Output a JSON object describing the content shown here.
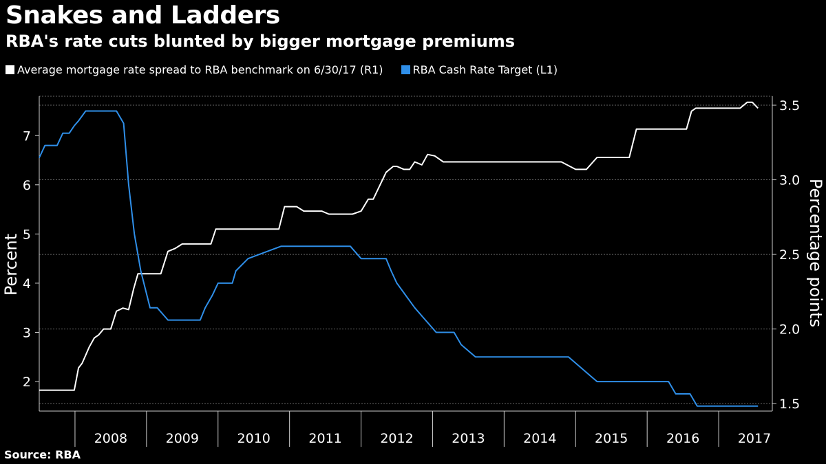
{
  "title": "Snakes and Ladders",
  "subtitle": "RBA's rate cuts blunted by bigger mortgage premiums",
  "source": "Source: RBA",
  "chart_data": {
    "type": "line",
    "xlim": [
      2007.5,
      2017.75
    ],
    "left_axis": {
      "label": "Percent",
      "ticks": [
        2,
        3,
        4,
        5,
        6,
        7
      ],
      "ylim": [
        1.4,
        7.8
      ]
    },
    "right_axis": {
      "label": "Percentage points",
      "ticks": [
        1.5,
        2.0,
        2.5,
        3.0,
        3.5
      ],
      "tick_labels": [
        "1.5",
        "2.0",
        "2.5",
        "3.0",
        "3.5"
      ],
      "ylim": [
        1.45,
        3.56
      ]
    },
    "x_tick_labels": [
      "2008",
      "2009",
      "2010",
      "2011",
      "2012",
      "2013",
      "2014",
      "2015",
      "2016",
      "2017"
    ],
    "grid": "horizontal dotted",
    "series": [
      {
        "name": "Average mortgage rate spread to RBA benchmark on 6/30/17 (R1)",
        "axis": "right",
        "color": "#ffffff",
        "x": [
          2007.5,
          2007.92,
          2007.99,
          2008.05,
          2008.1,
          2008.2,
          2008.27,
          2008.33,
          2008.4,
          2008.5,
          2008.58,
          2008.67,
          2008.75,
          2008.82,
          2008.88,
          2009.0,
          2009.2,
          2009.3,
          2009.4,
          2009.5,
          2009.9,
          2009.97,
          2010.4,
          2010.85,
          2010.93,
          2011.1,
          2011.2,
          2011.45,
          2011.55,
          2011.88,
          2012.0,
          2012.1,
          2012.17,
          2012.35,
          2012.45,
          2012.5,
          2012.6,
          2012.68,
          2012.75,
          2012.85,
          2012.93,
          2013.03,
          2013.15,
          2013.28,
          2013.55,
          2014.5,
          2014.8,
          2015.0,
          2015.05,
          2015.15,
          2015.3,
          2015.75,
          2015.85,
          2016.35,
          2016.55,
          2016.62,
          2016.68,
          2017.2,
          2017.3,
          2017.4,
          2017.47,
          2017.55
        ],
        "y": [
          1.59,
          1.59,
          1.59,
          1.74,
          1.77,
          1.88,
          1.94,
          1.96,
          2.0,
          2.0,
          2.12,
          2.14,
          2.13,
          2.27,
          2.37,
          2.37,
          2.37,
          2.52,
          2.54,
          2.57,
          2.57,
          2.67,
          2.67,
          2.67,
          2.82,
          2.82,
          2.79,
          2.79,
          2.77,
          2.77,
          2.79,
          2.87,
          2.87,
          3.05,
          3.09,
          3.09,
          3.07,
          3.07,
          3.12,
          3.1,
          3.17,
          3.16,
          3.12,
          3.12,
          3.12,
          3.12,
          3.12,
          3.07,
          3.07,
          3.07,
          3.15,
          3.15,
          3.34,
          3.34,
          3.34,
          3.46,
          3.48,
          3.48,
          3.48,
          3.52,
          3.52,
          3.48
        ]
      },
      {
        "name": "RBA Cash Rate Target (L1)",
        "axis": "left",
        "color": "#2f8fe9",
        "x": [
          2007.5,
          2007.58,
          2007.75,
          2007.83,
          2007.92,
          2007.99,
          2008.05,
          2008.15,
          2008.22,
          2008.58,
          2008.68,
          2008.75,
          2008.83,
          2008.92,
          2009.05,
          2009.15,
          2009.3,
          2009.75,
          2009.82,
          2009.92,
          2010.0,
          2010.2,
          2010.25,
          2010.42,
          2010.88,
          2011.0,
          2011.85,
          2012.0,
          2012.35,
          2012.42,
          2012.5,
          2012.75,
          2012.9,
          2013.05,
          2013.3,
          2013.4,
          2013.6,
          2014.0,
          2014.9,
          2015.1,
          2015.3,
          2015.5,
          2016.0,
          2016.3,
          2016.4,
          2016.6,
          2016.7,
          2017.55
        ],
        "y": [
          6.55,
          6.8,
          6.8,
          7.05,
          7.05,
          7.2,
          7.3,
          7.5,
          7.5,
          7.5,
          7.25,
          6.0,
          5.0,
          4.25,
          3.5,
          3.5,
          3.25,
          3.25,
          3.5,
          3.75,
          4.0,
          4.0,
          4.25,
          4.5,
          4.75,
          4.75,
          4.75,
          4.5,
          4.5,
          4.25,
          4.0,
          3.5,
          3.25,
          3.0,
          3.0,
          2.75,
          2.5,
          2.5,
          2.5,
          2.25,
          2.0,
          2.0,
          2.0,
          2.0,
          1.75,
          1.75,
          1.5,
          1.5
        ]
      }
    ]
  }
}
